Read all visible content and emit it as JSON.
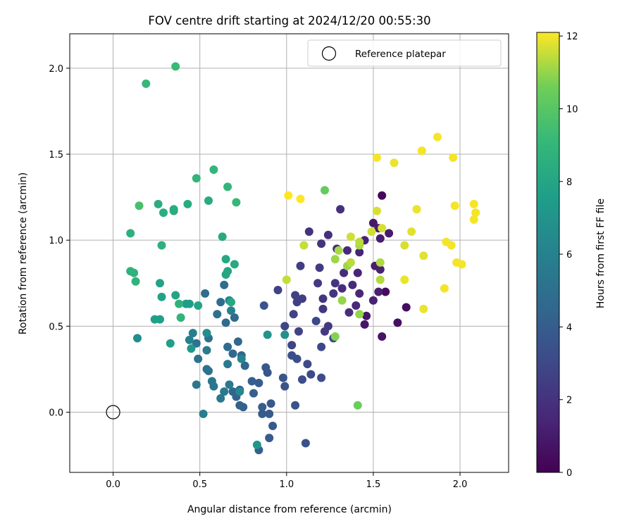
{
  "chart_data": {
    "type": "scatter",
    "title": "FOV centre drift starting at 2024/12/20 00:55:30",
    "xlabel": "Angular distance from reference (arcmin)",
    "ylabel": "Rotation from reference (arcmin)",
    "xlim": [
      -0.25,
      2.28
    ],
    "ylim": [
      -0.35,
      2.2
    ],
    "xticks": [
      "0.0",
      "0.5",
      "1.0",
      "1.5",
      "2.0"
    ],
    "yticks": [
      "0.0",
      "0.5",
      "1.0",
      "1.5",
      "2.0"
    ],
    "grid": true,
    "legend": {
      "placement": "top-right",
      "entries": [
        "Reference platepar"
      ]
    },
    "reference_point": {
      "x": 0.0,
      "y": 0.0,
      "label": "Reference platepar"
    },
    "colorbar": {
      "label": "Hours from first FF file",
      "range": [
        0,
        12.1
      ],
      "ticks": [
        "0",
        "2",
        "4",
        "6",
        "8",
        "10",
        "12"
      ],
      "colormap": "viridis"
    },
    "points": [
      [
        1.55,
        1.26,
        0.3
      ],
      [
        1.57,
        0.7,
        0.4
      ],
      [
        1.69,
        0.61,
        0.5
      ],
      [
        1.64,
        0.52,
        0.6
      ],
      [
        1.55,
        0.44,
        0.7
      ],
      [
        1.45,
        0.51,
        0.8
      ],
      [
        1.46,
        0.56,
        0.8
      ],
      [
        1.5,
        1.1,
        0.9
      ],
      [
        1.53,
        1.07,
        1.0
      ],
      [
        1.59,
        1.04,
        1.0
      ],
      [
        1.54,
        1.01,
        1.1
      ],
      [
        1.51,
        0.85,
        1.1
      ],
      [
        1.54,
        0.83,
        1.2
      ],
      [
        1.53,
        0.7,
        1.2
      ],
      [
        1.5,
        0.65,
        1.3
      ],
      [
        1.45,
        1.0,
        1.3
      ],
      [
        1.42,
        0.93,
        1.4
      ],
      [
        1.41,
        0.81,
        1.4
      ],
      [
        1.42,
        0.69,
        1.5
      ],
      [
        1.4,
        0.62,
        1.5
      ],
      [
        1.38,
        0.74,
        1.6
      ],
      [
        1.35,
        0.94,
        1.6
      ],
      [
        1.33,
        0.81,
        1.7
      ],
      [
        1.32,
        0.72,
        1.7
      ],
      [
        1.36,
        0.58,
        1.8
      ],
      [
        1.29,
        0.95,
        1.8
      ],
      [
        1.31,
        1.18,
        1.9
      ],
      [
        1.24,
        1.03,
        1.9
      ],
      [
        1.2,
        0.98,
        2.0
      ],
      [
        1.13,
        1.05,
        2.0
      ],
      [
        1.28,
        0.75,
        2.1
      ],
      [
        1.27,
        0.69,
        2.1
      ],
      [
        1.21,
        0.66,
        2.2
      ],
      [
        1.21,
        0.6,
        2.2
      ],
      [
        1.22,
        0.47,
        2.3
      ],
      [
        1.24,
        0.5,
        2.3
      ],
      [
        1.19,
        0.84,
        2.4
      ],
      [
        1.18,
        0.75,
        2.4
      ],
      [
        1.08,
        0.85,
        2.5
      ],
      [
        1.09,
        0.66,
        2.5
      ],
      [
        1.06,
        0.64,
        2.6
      ],
      [
        1.05,
        0.68,
        2.6
      ],
      [
        1.04,
        0.57,
        2.7
      ],
      [
        0.95,
        0.71,
        2.7
      ],
      [
        1.07,
        0.47,
        2.8
      ],
      [
        1.03,
        0.39,
        2.8
      ],
      [
        0.99,
        0.5,
        2.9
      ],
      [
        1.17,
        0.53,
        2.9
      ],
      [
        1.2,
        0.38,
        3.0
      ],
      [
        1.27,
        0.43,
        3.0
      ],
      [
        1.12,
        0.28,
        3.1
      ],
      [
        1.14,
        0.22,
        3.1
      ],
      [
        1.2,
        0.2,
        3.2
      ],
      [
        1.09,
        0.19,
        3.2
      ],
      [
        1.06,
        0.31,
        3.3
      ],
      [
        1.03,
        0.33,
        3.3
      ],
      [
        1.05,
        0.04,
        3.4
      ],
      [
        1.11,
        -0.18,
        3.4
      ],
      [
        0.87,
        0.62,
        3.5
      ],
      [
        0.99,
        0.15,
        3.5
      ],
      [
        0.98,
        0.2,
        3.6
      ],
      [
        0.89,
        0.23,
        3.6
      ],
      [
        0.88,
        0.26,
        3.7
      ],
      [
        0.91,
        0.05,
        3.7
      ],
      [
        0.9,
        -0.01,
        3.8
      ],
      [
        0.92,
        -0.08,
        3.8
      ],
      [
        0.9,
        -0.15,
        3.9
      ],
      [
        0.86,
        -0.01,
        3.9
      ],
      [
        0.86,
        0.03,
        4.0
      ],
      [
        0.84,
        0.17,
        4.0
      ],
      [
        0.8,
        0.18,
        4.1
      ],
      [
        0.81,
        0.11,
        4.1
      ],
      [
        0.84,
        -0.22,
        4.2
      ],
      [
        0.75,
        0.03,
        4.2
      ],
      [
        0.73,
        0.04,
        4.3
      ],
      [
        0.71,
        0.09,
        4.3
      ],
      [
        0.73,
        0.13,
        4.4
      ],
      [
        0.69,
        0.12,
        4.4
      ],
      [
        0.76,
        0.27,
        4.5
      ],
      [
        0.74,
        0.33,
        4.5
      ],
      [
        0.72,
        0.41,
        4.6
      ],
      [
        0.69,
        0.34,
        4.6
      ],
      [
        0.7,
        0.55,
        4.7
      ],
      [
        0.65,
        0.52,
        4.7
      ],
      [
        0.66,
        0.38,
        4.8
      ],
      [
        0.62,
        0.64,
        4.8
      ],
      [
        0.64,
        0.74,
        4.9
      ],
      [
        0.53,
        0.69,
        4.9
      ],
      [
        0.6,
        0.57,
        5.0
      ],
      [
        0.55,
        0.43,
        5.0
      ],
      [
        0.48,
        0.4,
        5.1
      ],
      [
        0.49,
        0.31,
        5.1
      ],
      [
        0.54,
        0.25,
        5.2
      ],
      [
        0.55,
        0.24,
        5.2
      ],
      [
        0.57,
        0.18,
        5.3
      ],
      [
        0.58,
        0.15,
        5.3
      ],
      [
        0.48,
        0.16,
        5.4
      ],
      [
        0.62,
        0.08,
        5.4
      ],
      [
        0.64,
        0.12,
        5.5
      ],
      [
        0.67,
        0.16,
        5.5
      ],
      [
        0.66,
        0.28,
        5.6
      ],
      [
        0.54,
        0.36,
        5.7
      ],
      [
        0.52,
        -0.01,
        5.8
      ],
      [
        0.46,
        0.46,
        5.9
      ],
      [
        0.44,
        0.42,
        6.0
      ],
      [
        0.68,
        0.59,
        6.0
      ],
      [
        0.67,
        0.65,
        6.1
      ],
      [
        0.74,
        0.31,
        6.2
      ],
      [
        0.73,
        0.12,
        6.4
      ],
      [
        0.14,
        0.43,
        6.6
      ],
      [
        0.54,
        0.46,
        6.7
      ],
      [
        0.99,
        0.45,
        6.8
      ],
      [
        0.89,
        0.45,
        7.0
      ],
      [
        0.83,
        -0.19,
        7.2
      ],
      [
        0.45,
        0.37,
        7.3
      ],
      [
        0.42,
        0.63,
        7.4
      ],
      [
        0.44,
        0.63,
        7.5
      ],
      [
        0.33,
        0.4,
        7.6
      ],
      [
        0.24,
        0.54,
        7.7
      ],
      [
        0.27,
        0.54,
        7.7
      ],
      [
        0.28,
        0.67,
        7.8
      ],
      [
        0.27,
        0.75,
        7.8
      ],
      [
        0.36,
        0.68,
        7.9
      ],
      [
        0.49,
        0.62,
        7.9
      ],
      [
        0.66,
        0.82,
        8.0
      ],
      [
        0.65,
        0.8,
        8.0
      ],
      [
        0.68,
        0.64,
        8.1
      ],
      [
        0.65,
        0.89,
        8.1
      ],
      [
        0.7,
        0.86,
        8.2
      ],
      [
        0.63,
        1.02,
        8.2
      ],
      [
        0.55,
        1.23,
        8.3
      ],
      [
        0.43,
        1.21,
        8.3
      ],
      [
        0.35,
        1.17,
        8.4
      ],
      [
        0.35,
        1.18,
        8.4
      ],
      [
        0.26,
        1.21,
        8.5
      ],
      [
        0.29,
        1.16,
        8.5
      ],
      [
        0.28,
        0.97,
        8.6
      ],
      [
        0.1,
        1.04,
        8.6
      ],
      [
        0.12,
        0.81,
        8.7
      ],
      [
        0.1,
        0.82,
        8.7
      ],
      [
        0.13,
        0.76,
        8.8
      ],
      [
        0.38,
        0.63,
        8.8
      ],
      [
        0.39,
        0.55,
        8.9
      ],
      [
        0.48,
        1.36,
        8.9
      ],
      [
        0.58,
        1.41,
        9.0
      ],
      [
        0.66,
        1.31,
        9.0
      ],
      [
        0.71,
        1.22,
        9.1
      ],
      [
        0.19,
        1.91,
        9.1
      ],
      [
        0.36,
        2.01,
        9.2
      ],
      [
        0.15,
        1.2,
        9.6
      ],
      [
        1.22,
        1.29,
        10.3
      ],
      [
        1.41,
        0.04,
        10.5
      ],
      [
        1.28,
        0.44,
        10.8
      ],
      [
        1.32,
        0.65,
        11.0
      ],
      [
        1.42,
        0.57,
        11.0
      ],
      [
        1.35,
        0.85,
        11.1
      ],
      [
        1.28,
        0.89,
        11.1
      ],
      [
        1.3,
        0.94,
        11.2
      ],
      [
        1.42,
        0.97,
        11.2
      ],
      [
        1.54,
        0.87,
        11.3
      ],
      [
        1.54,
        0.77,
        11.3
      ],
      [
        1.37,
        0.87,
        11.4
      ],
      [
        1.42,
        0.99,
        11.4
      ],
      [
        1.1,
        0.97,
        11.5
      ],
      [
        1.0,
        0.77,
        11.5
      ],
      [
        1.37,
        1.02,
        11.6
      ],
      [
        1.49,
        1.05,
        11.6
      ],
      [
        1.55,
        1.07,
        11.7
      ],
      [
        1.52,
        1.17,
        11.7
      ],
      [
        1.68,
        0.97,
        11.7
      ],
      [
        1.72,
        1.05,
        11.8
      ],
      [
        1.79,
        0.91,
        11.8
      ],
      [
        1.79,
        0.6,
        11.9
      ],
      [
        1.68,
        0.77,
        11.9
      ],
      [
        1.75,
        1.18,
        11.9
      ],
      [
        1.62,
        1.45,
        11.9
      ],
      [
        1.52,
        1.48,
        12.0
      ],
      [
        1.78,
        1.52,
        12.0
      ],
      [
        1.87,
        1.6,
        12.0
      ],
      [
        1.96,
        1.48,
        12.0
      ],
      [
        1.97,
        1.2,
        12.0
      ],
      [
        1.92,
        0.99,
        12.0
      ],
      [
        1.95,
        0.97,
        12.0
      ],
      [
        1.91,
        0.72,
        12.0
      ],
      [
        1.98,
        0.87,
        12.0
      ],
      [
        2.01,
        0.86,
        12.0
      ],
      [
        2.09,
        1.16,
        12.0
      ],
      [
        2.08,
        1.21,
        12.0
      ],
      [
        2.08,
        1.12,
        12.0
      ],
      [
        1.08,
        1.24,
        12.1
      ],
      [
        1.01,
        1.26,
        12.1
      ]
    ]
  }
}
